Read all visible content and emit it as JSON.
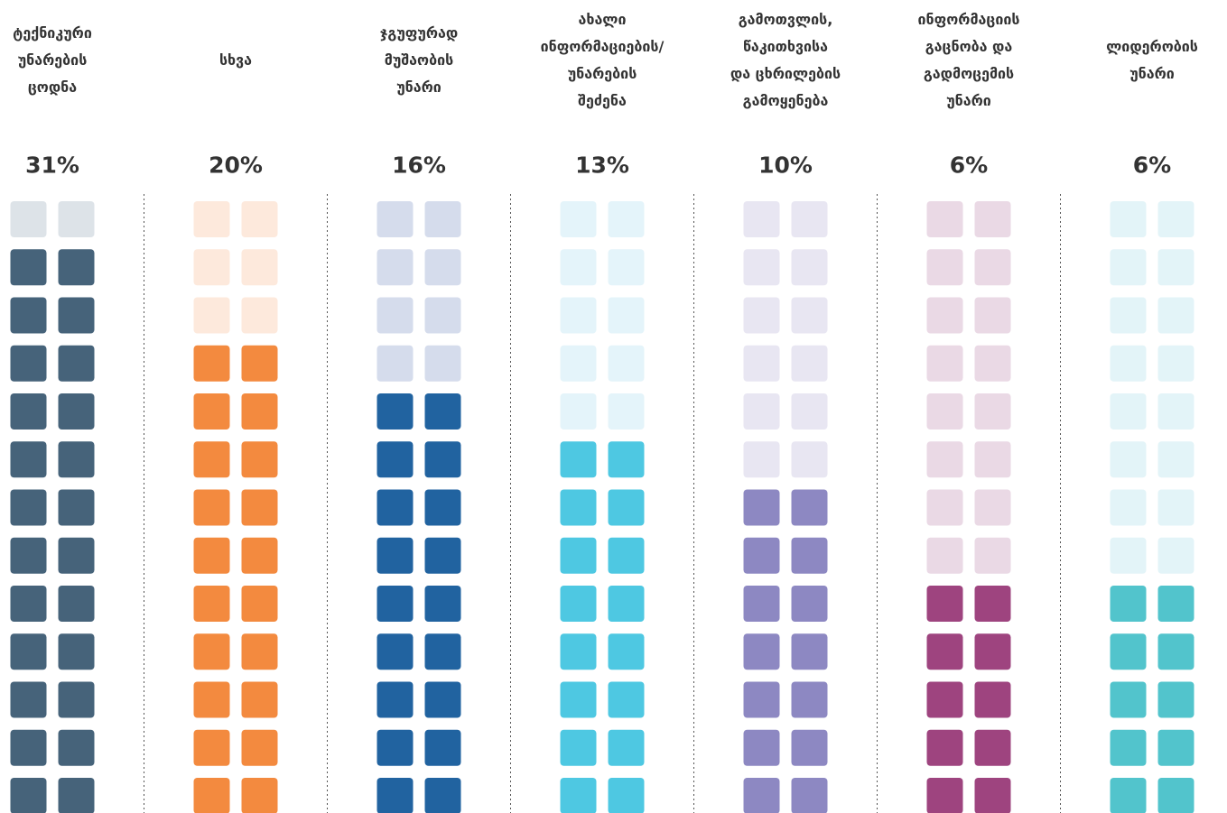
{
  "chart_data": {
    "type": "waffle",
    "categories": [
      "ტექნიკური\nუნარების\nცოდნა",
      "სხვა",
      "ჯგუფურად\nმუშაობის\nუნარი",
      "ახალი\nინფორმაციების/\nუნარების\nშეძენა",
      "გამოთვლის,\nწაკითხვისა\nდა ცხრილების\nგამოყენება",
      "ინფორმაციის\nგაცნობა და\nგადმოცემის\nუნარი",
      "ლიდერობის\nუნარი"
    ],
    "values": [
      31,
      20,
      16,
      13,
      10,
      6,
      6
    ],
    "value_labels": [
      "31%",
      "20%",
      "16%",
      "13%",
      "10%",
      "6%",
      "6%"
    ],
    "rows": 13,
    "filled": [
      12,
      10,
      9,
      8,
      7,
      5,
      5
    ],
    "colors": [
      "#46637a",
      "#f38a3f",
      "#2163a0",
      "#4ec8e2",
      "#8d88c2",
      "#9e447f",
      "#52c4cc"
    ],
    "light_colors": [
      "#dde3e8",
      "#fde9dc",
      "#d5dcec",
      "#e4f4fa",
      "#e8e6f2",
      "#ead9e5",
      "#e3f4f8"
    ]
  }
}
